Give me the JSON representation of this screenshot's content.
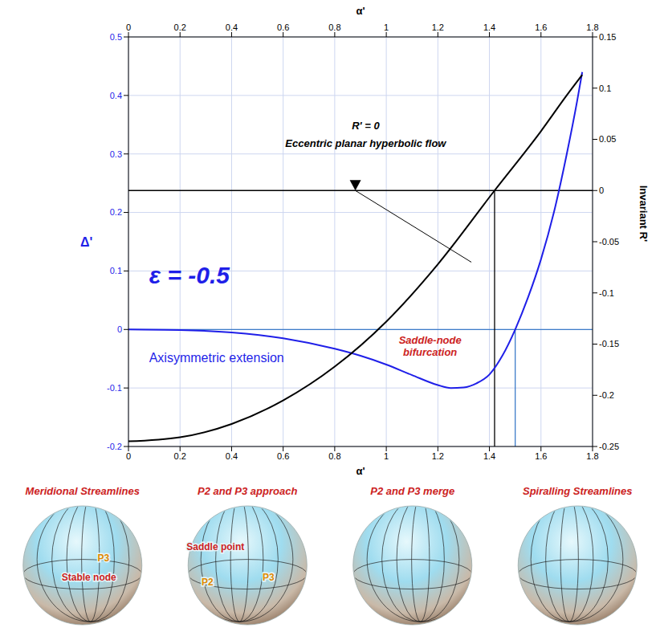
{
  "chart_data": {
    "type": "line",
    "x_label": "α'",
    "y_label": "Δ'",
    "y2_label": "Invariant R'",
    "xlim": [
      0,
      1.8
    ],
    "xticks": [
      0,
      0.2,
      0.4,
      0.6,
      0.8,
      1,
      1.2,
      1.4,
      1.6,
      1.8
    ],
    "ylim": [
      -0.2,
      0.5
    ],
    "yticks": [
      -0.2,
      -0.1,
      0,
      0.1,
      0.2,
      0.3,
      0.4,
      0.5
    ],
    "y2lim": [
      -0.25,
      0.15
    ],
    "y2ticks": [
      -0.25,
      -0.2,
      -0.15,
      -0.1,
      -0.05,
      0,
      0.05,
      0.1,
      0.15
    ],
    "grid": true,
    "series": [
      {
        "color": "#1f1fe8",
        "x": [
          0,
          0.2,
          0.4,
          0.6,
          0.8,
          0.9,
          1.0,
          1.1,
          1.2,
          1.25,
          1.3,
          1.35,
          1.4,
          1.45,
          1.5,
          1.55,
          1.6,
          1.65,
          1.7,
          1.74,
          1.76
        ],
        "values": [
          0,
          -0.001,
          -0.005,
          -0.015,
          -0.033,
          -0.045,
          -0.06,
          -0.078,
          -0.095,
          -0.1,
          -0.099,
          -0.092,
          -0.077,
          -0.045,
          0,
          0.055,
          0.12,
          0.2,
          0.3,
          0.39,
          0.44
        ]
      },
      {
        "color": "#000000",
        "axis": "y2",
        "x": [
          0,
          0.2,
          0.4,
          0.6,
          0.8,
          1.0,
          1.2,
          1.42,
          1.6,
          1.7,
          1.76
        ],
        "values": [
          -0.245,
          -0.241,
          -0.228,
          -0.205,
          -0.172,
          -0.128,
          -0.072,
          0,
          0.058,
          0.093,
          0.113
        ]
      }
    ],
    "hlines": [
      {
        "y": 0,
        "axis": "y",
        "color": "#3d7cc9"
      },
      {
        "y": 0,
        "axis": "y2",
        "color": "#000000"
      }
    ],
    "vlines": [
      {
        "x": 1.42,
        "from": 0,
        "to": -0.25,
        "axis": "y2",
        "color": "#000000"
      },
      {
        "x": 1.5,
        "from": 0,
        "to": -0.2,
        "axis": "y",
        "color": "#3d7cc9"
      }
    ],
    "arrow": {
      "from": [
        1.33,
        -0.07
      ],
      "to": [
        0.88,
        0
      ],
      "axis": "y2",
      "color": "#000000"
    },
    "annotations": [
      {
        "text": "ε  =  -0.5",
        "x": 0.08,
        "y": 0.09,
        "axis": "y",
        "color": "#1f1fe8"
      },
      {
        "text": "Axisymmetric extension",
        "x": 0.08,
        "y": -0.05,
        "axis": "y",
        "color": "#1f1fe8"
      },
      {
        "text": "Saddle-node bifurcation",
        "x": 1.17,
        "y": -0.02,
        "axis": "y",
        "color": "#cc2222"
      },
      {
        "text": "R' = 0",
        "x": 0.92,
        "y": 0.062,
        "axis": "y2",
        "color": "#000000"
      },
      {
        "text": "Eccentric planar hyperbolic flow",
        "x": 0.92,
        "y": 0.045,
        "axis": "y2",
        "color": "#000000"
      }
    ]
  },
  "panels": [
    {
      "title": "Meridional Streamlines",
      "color": "#cc2222",
      "labels": [
        {
          "text": "P3",
          "color": "#e08a00"
        },
        {
          "text": "Stable node",
          "color": "#cc2222"
        }
      ]
    },
    {
      "title": "P2 and P3 approach",
      "color": "#cc2222",
      "labels": [
        {
          "text": "Saddle point",
          "color": "#cc2222"
        },
        {
          "text": "P2",
          "color": "#e08a00"
        },
        {
          "text": "P3",
          "color": "#e08a00"
        }
      ]
    },
    {
      "title": "P2 and P3 merge",
      "color": "#cc2222",
      "labels": []
    },
    {
      "title": "Spiralling Streamlines",
      "color": "#cc2222",
      "labels": []
    }
  ]
}
